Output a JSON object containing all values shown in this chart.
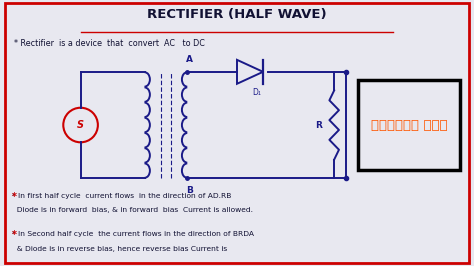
{
  "title": "RECTIFIER (HALF WAVE)",
  "title_underline_color": "#cc0000",
  "bg_color": "#e8e8f0",
  "border_color": "#cc0000",
  "text_color": "#111133",
  "red_star_color": "#cc0000",
  "line1": "Rectifier  is a device  that  convert  AC   to DC",
  "line2": "In first half cycle  current flows  in the direction of AD.RB",
  "line3": "Diode is in forward  bias, & in forward  bias  Current is allowed.",
  "line4": "In Second half cycle  the current flows in the direction of BRDA",
  "line5": "& Diode is in reverse bias, hence reverse bias Current is",
  "telugu_text": "తెలుగు లో౭",
  "orange_color": "#ff5500",
  "circuit_color": "#1a1a88",
  "label_A": "A",
  "label_B": "B",
  "label_D1": "D₁",
  "label_R": "R",
  "label_S": "S",
  "figsize": [
    4.74,
    2.66
  ],
  "dpi": 100
}
